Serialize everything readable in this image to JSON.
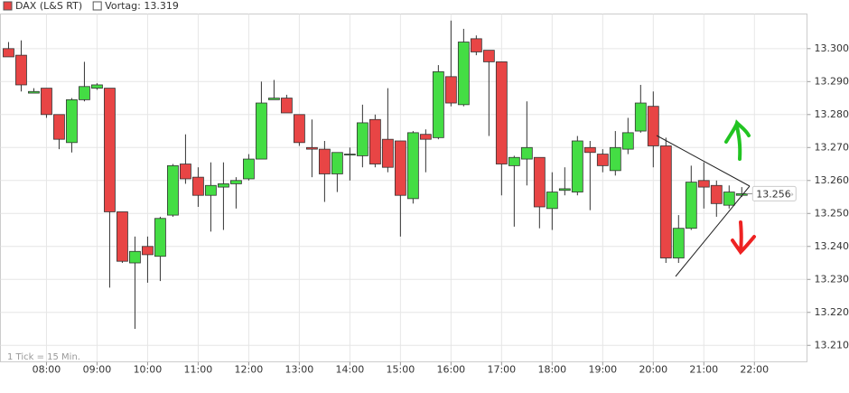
{
  "chart_data": {
    "type": "candlestick",
    "legend": [
      {
        "label": "DAX (L&S RT)",
        "color": "#e84545"
      },
      {
        "label": "Vortag: 13.319",
        "color": "#ffffff"
      }
    ],
    "note": "1 Tick = 15 Min.",
    "up_color": "#44dd44",
    "down_color": "#e84545",
    "grid": true,
    "x": [
      7.25,
      7.5,
      7.75,
      8,
      8.25,
      8.5,
      8.75,
      9,
      9.25,
      9.5,
      9.75,
      10,
      10.25,
      10.5,
      10.75,
      11,
      11.25,
      11.5,
      11.75,
      12,
      12.25,
      12.5,
      12.75,
      13,
      13.25,
      13.5,
      13.75,
      14,
      14.25,
      14.5,
      14.75,
      15,
      15.25,
      15.5,
      15.75,
      16,
      16.25,
      16.5,
      16.75,
      17,
      17.25,
      17.5,
      17.75,
      18,
      18.25,
      18.5,
      18.75,
      19,
      19.25,
      19.5,
      19.75,
      20,
      20.25,
      20.5,
      20.75,
      21,
      21.25,
      21.5,
      21.75
    ],
    "open": [
      13.3,
      13.298,
      13.2865,
      13.288,
      13.28,
      13.2715,
      13.2845,
      13.288,
      13.288,
      13.2505,
      13.235,
      13.24,
      13.237,
      13.2495,
      13.265,
      13.261,
      13.2555,
      13.258,
      13.259,
      13.2605,
      13.2665,
      13.2845,
      13.285,
      13.28,
      13.27,
      13.2695,
      13.262,
      13.268,
      13.2675,
      13.2785,
      13.2725,
      13.272,
      13.2545,
      13.274,
      13.273,
      13.2915,
      13.283,
      13.303,
      13.2995,
      13.296,
      13.2645,
      13.2665,
      13.267,
      13.2515,
      13.257,
      13.2565,
      13.27,
      13.268,
      13.263,
      13.2695,
      13.275,
      13.2825,
      13.2705,
      13.2365,
      13.2455,
      13.26,
      13.2585,
      13.2525,
      13.2555
    ],
    "high": [
      13.302,
      13.3025,
      13.288,
      13.288,
      13.28,
      13.285,
      13.296,
      13.2895,
      13.288,
      13.2505,
      13.243,
      13.243,
      13.249,
      13.265,
      13.274,
      13.264,
      13.2655,
      13.2655,
      13.261,
      13.268,
      13.29,
      13.2905,
      13.286,
      13.28,
      13.2785,
      13.272,
      13.2685,
      13.27,
      13.283,
      13.28,
      13.288,
      13.272,
      13.275,
      13.2755,
      13.295,
      13.3085,
      13.306,
      13.304,
      13.2995,
      13.296,
      13.2675,
      13.284,
      13.267,
      13.2625,
      13.264,
      13.2735,
      13.272,
      13.2695,
      13.275,
      13.279,
      13.289,
      13.287,
      13.273,
      13.2495,
      13.2645,
      13.2655,
      13.26,
      13.2585,
      13.258
    ],
    "low": [
      13.2975,
      13.287,
      13.2865,
      13.279,
      13.2695,
      13.2685,
      13.284,
      13.2875,
      13.2275,
      13.235,
      13.215,
      13.229,
      13.2295,
      13.249,
      13.259,
      13.252,
      13.2445,
      13.245,
      13.2515,
      13.26,
      13.2665,
      13.2845,
      13.2805,
      13.2705,
      13.261,
      13.2535,
      13.2565,
      13.26,
      13.264,
      13.264,
      13.2625,
      13.243,
      13.253,
      13.2625,
      13.2725,
      13.2825,
      13.2825,
      13.298,
      13.2735,
      13.2555,
      13.246,
      13.2585,
      13.2455,
      13.245,
      13.2555,
      13.2555,
      13.251,
      13.2625,
      13.2615,
      13.268,
      13.2745,
      13.264,
      13.235,
      13.235,
      13.245,
      13.2515,
      13.249,
      13.2515,
      13.255
    ],
    "close": [
      13.2975,
      13.289,
      13.287,
      13.28,
      13.2725,
      13.2845,
      13.2885,
      13.289,
      13.2505,
      13.2355,
      13.2385,
      13.2375,
      13.2485,
      13.2645,
      13.2605,
      13.2555,
      13.2585,
      13.259,
      13.26,
      13.2665,
      13.2835,
      13.285,
      13.2805,
      13.2715,
      13.2695,
      13.262,
      13.2685,
      13.268,
      13.2775,
      13.265,
      13.264,
      13.2555,
      13.2745,
      13.2725,
      13.293,
      13.2835,
      13.302,
      13.299,
      13.296,
      13.265,
      13.267,
      13.27,
      13.252,
      13.2565,
      13.2575,
      13.272,
      13.2685,
      13.2645,
      13.27,
      13.2745,
      13.2835,
      13.2705,
      13.2365,
      13.2455,
      13.2595,
      13.258,
      13.253,
      13.2565,
      13.256
    ],
    "last_value": 13.256,
    "xlim": [
      7.09,
      23.04
    ],
    "ylim": [
      13.205,
      13.3105
    ],
    "xticks": [
      {
        "value": 8,
        "label": "08:00"
      },
      {
        "value": 9,
        "label": "09:00"
      },
      {
        "value": 10,
        "label": "10:00"
      },
      {
        "value": 11,
        "label": "11:00"
      },
      {
        "value": 12,
        "label": "12:00"
      },
      {
        "value": 13,
        "label": "13:00"
      },
      {
        "value": 14,
        "label": "14:00"
      },
      {
        "value": 15,
        "label": "15:00"
      },
      {
        "value": 16,
        "label": "16:00"
      },
      {
        "value": 17,
        "label": "17:00"
      },
      {
        "value": 18,
        "label": "18:00"
      },
      {
        "value": 19,
        "label": "19:00"
      },
      {
        "value": 20,
        "label": "20:00"
      },
      {
        "value": 21,
        "label": "21:00"
      },
      {
        "value": 22,
        "label": "22:00"
      }
    ],
    "yticks": [
      {
        "value": 13.21,
        "label": "13.210"
      },
      {
        "value": 13.22,
        "label": "13.220"
      },
      {
        "value": 13.23,
        "label": "13.230"
      },
      {
        "value": 13.24,
        "label": "13.240"
      },
      {
        "value": 13.25,
        "label": "13.250"
      },
      {
        "value": 13.26,
        "label": "13.260"
      },
      {
        "value": 13.27,
        "label": "13.270"
      },
      {
        "value": 13.28,
        "label": "13.280"
      },
      {
        "value": 13.29,
        "label": "13.290"
      },
      {
        "value": 13.3,
        "label": "13.300"
      }
    ]
  }
}
